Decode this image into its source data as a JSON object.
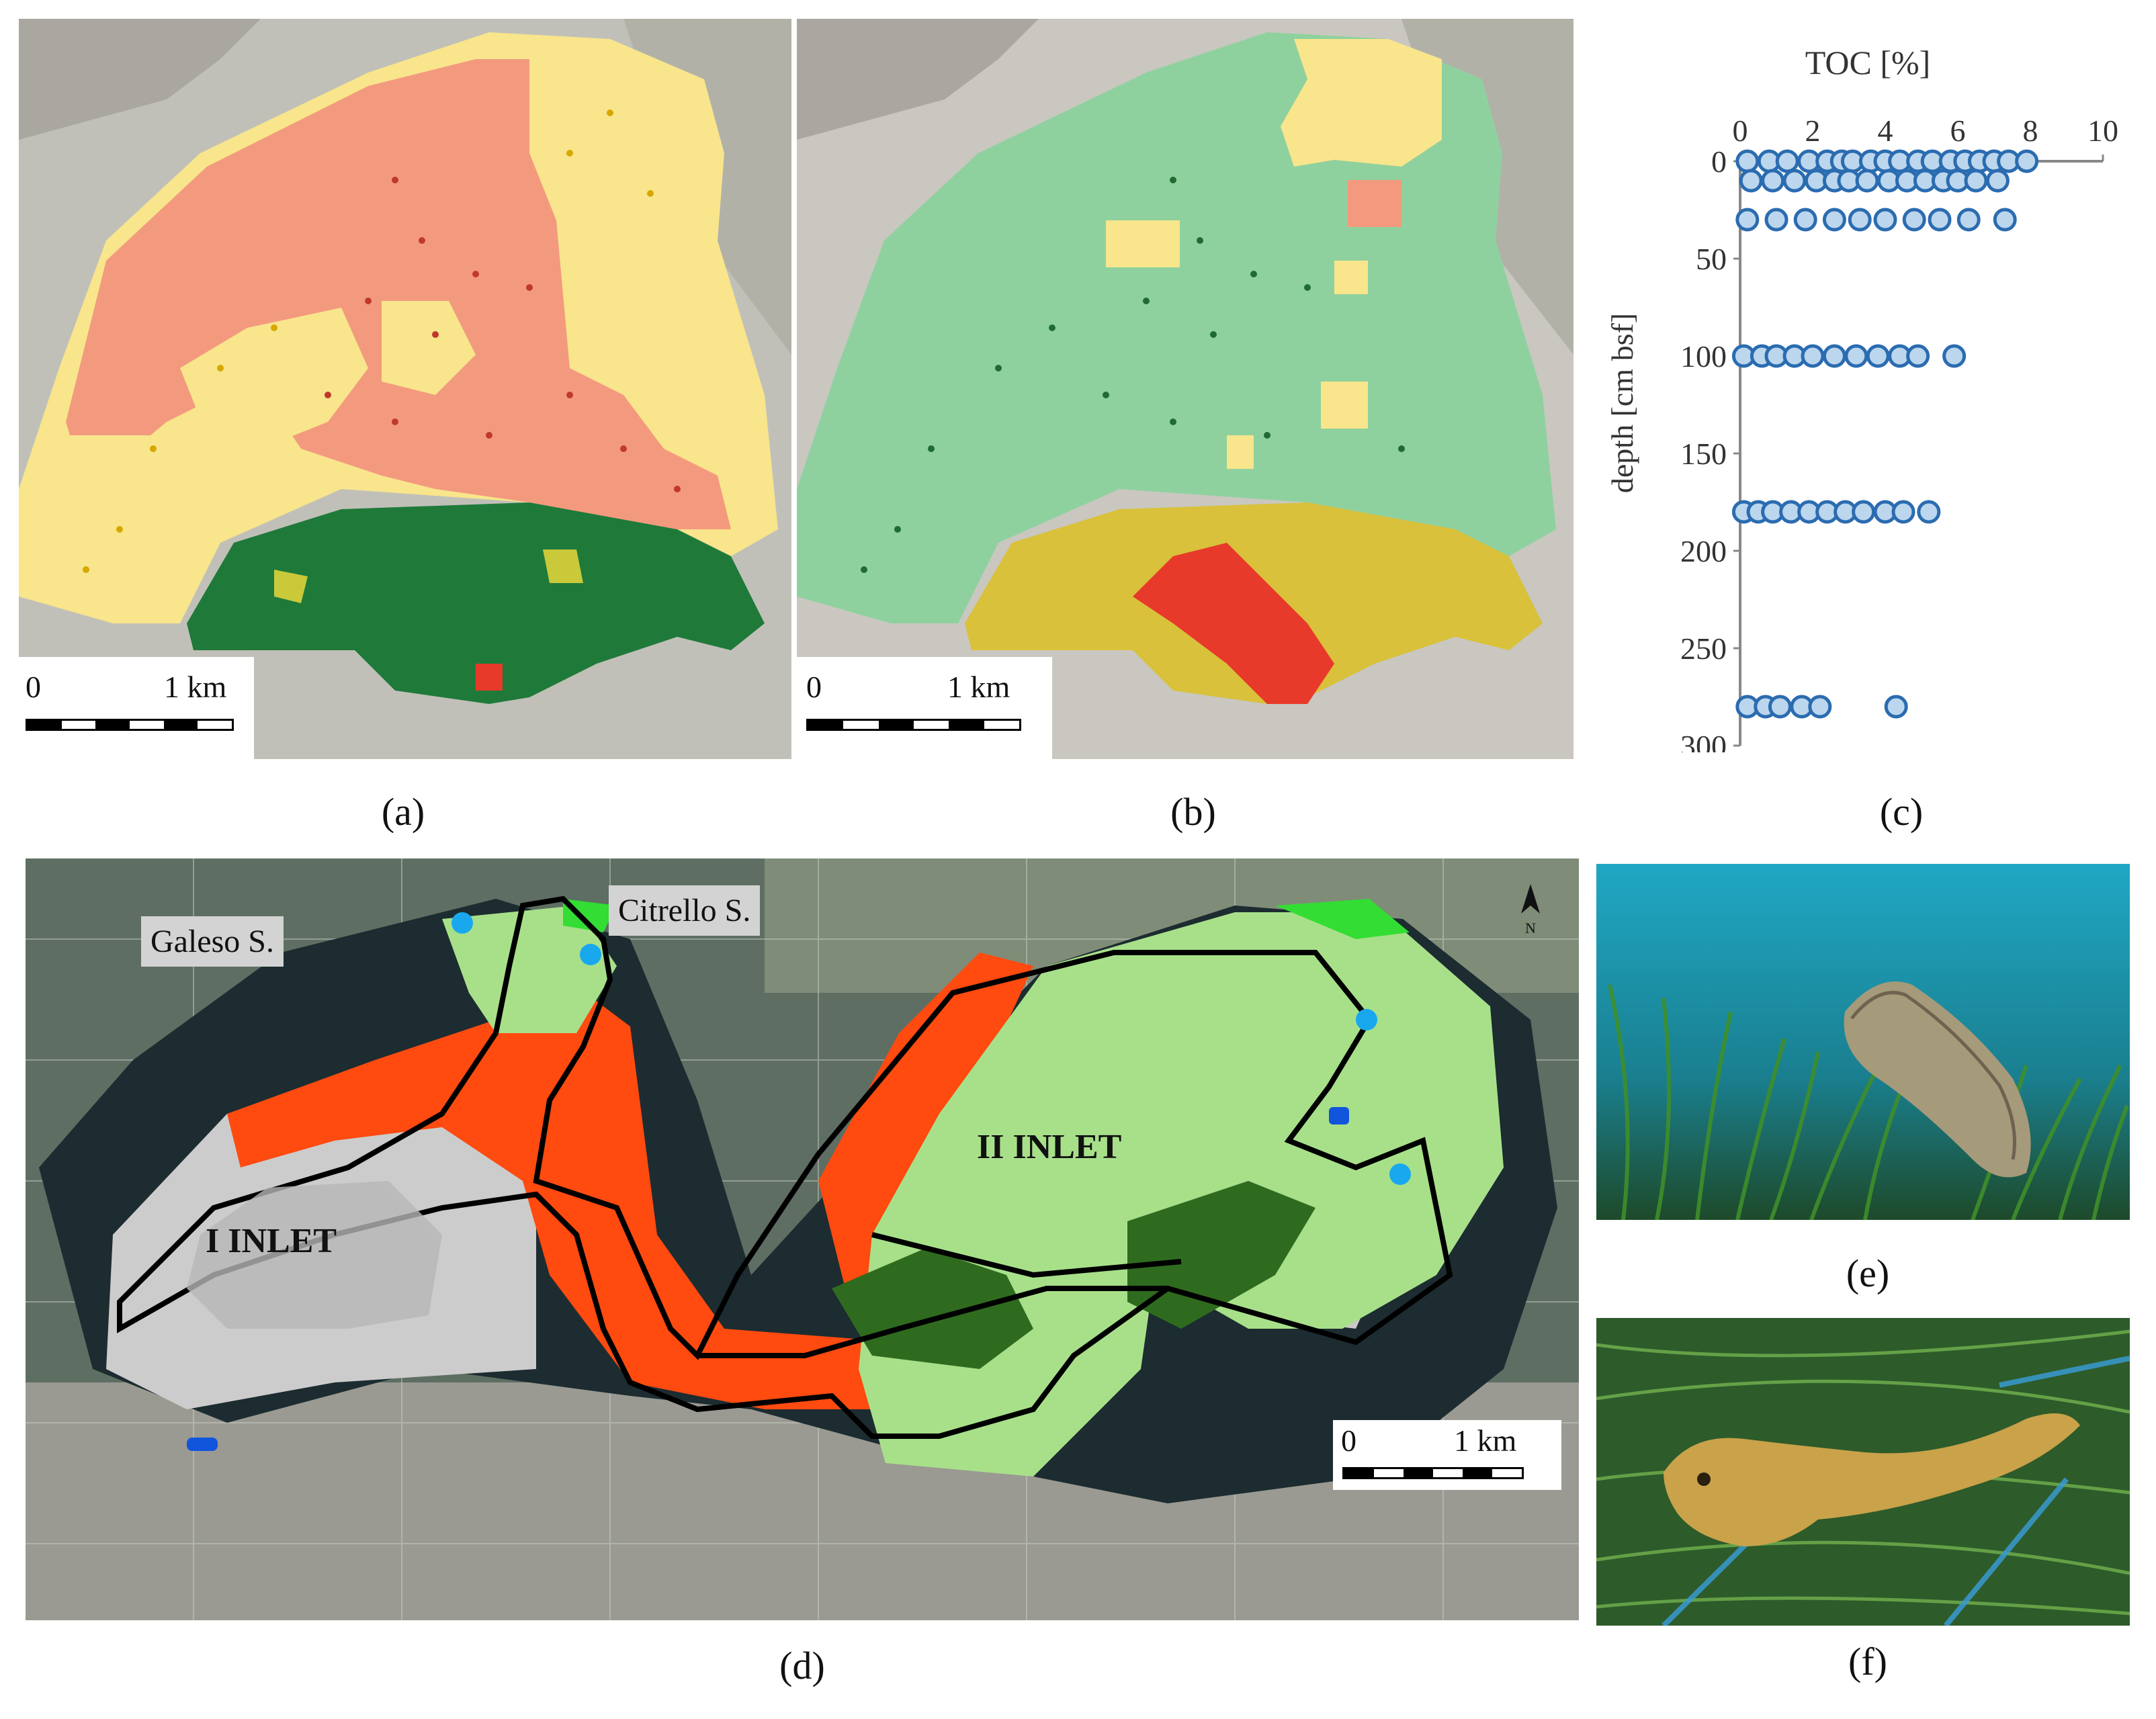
{
  "captions": {
    "a": "(a)",
    "b": "(b)",
    "c": "(c)",
    "d": "(d)",
    "e": "(e)",
    "f": "(f)"
  },
  "scale_bar": {
    "start": "0",
    "end": "1 km"
  },
  "map_d": {
    "stations": [
      "Galeso S.",
      "Citrello S."
    ],
    "inlets": [
      "I INLET",
      "II INLET"
    ],
    "north_label": "N"
  },
  "colors": {
    "red_zone": "#f39a7e",
    "yellow_zone": "#f8e58c",
    "green_zone": "#8fd19e",
    "dark_green_zone": "#1f7a3a",
    "hatched_yellow": "#d9c13b",
    "bright_red": "#e83a2a",
    "habitat_orange": "#ff4a10",
    "habitat_light_green": "#a8e08a",
    "habitat_dark_green": "#2f6b1f",
    "habitat_gray": "#cccccc",
    "marker_blue": "#2b6cb0",
    "marker_fill": "#bcd6ee"
  },
  "chart_data": {
    "type": "scatter",
    "title": "TOC [%]",
    "xlabel": "TOC [%]",
    "ylabel": "depth [cm bsf]",
    "xlim": [
      0,
      10
    ],
    "ylim": [
      300,
      0
    ],
    "x_ticks": [
      "0",
      "2",
      "4",
      "6",
      "8",
      "10"
    ],
    "y_ticks": [
      "0",
      "50",
      "100",
      "150",
      "200",
      "250",
      "300"
    ],
    "grid": false,
    "series": [
      {
        "depth": 0,
        "toc": [
          0.2,
          0.8,
          1.3,
          1.9,
          2.4,
          2.8,
          3.1,
          3.6,
          4.0,
          4.4,
          4.9,
          5.3,
          5.8,
          6.2,
          6.6,
          7.0,
          7.4,
          7.9
        ]
      },
      {
        "depth": 10,
        "toc": [
          0.3,
          0.9,
          1.5,
          2.1,
          2.6,
          3.0,
          3.5,
          4.1,
          4.6,
          5.1,
          5.6,
          6.0,
          6.5,
          7.1
        ]
      },
      {
        "depth": 30,
        "toc": [
          0.2,
          1.0,
          1.8,
          2.6,
          3.3,
          4.0,
          4.8,
          5.5,
          6.3,
          7.3
        ]
      },
      {
        "depth": 100,
        "toc": [
          0.1,
          0.6,
          1.0,
          1.5,
          2.0,
          2.6,
          3.2,
          3.8,
          4.4,
          4.9,
          5.9
        ]
      },
      {
        "depth": 180,
        "toc": [
          0.1,
          0.5,
          0.9,
          1.4,
          1.9,
          2.4,
          2.9,
          3.4,
          4.0,
          4.5,
          5.2
        ]
      },
      {
        "depth": 280,
        "toc": [
          0.2,
          0.7,
          1.1,
          1.7,
          2.2,
          4.3
        ]
      }
    ]
  }
}
